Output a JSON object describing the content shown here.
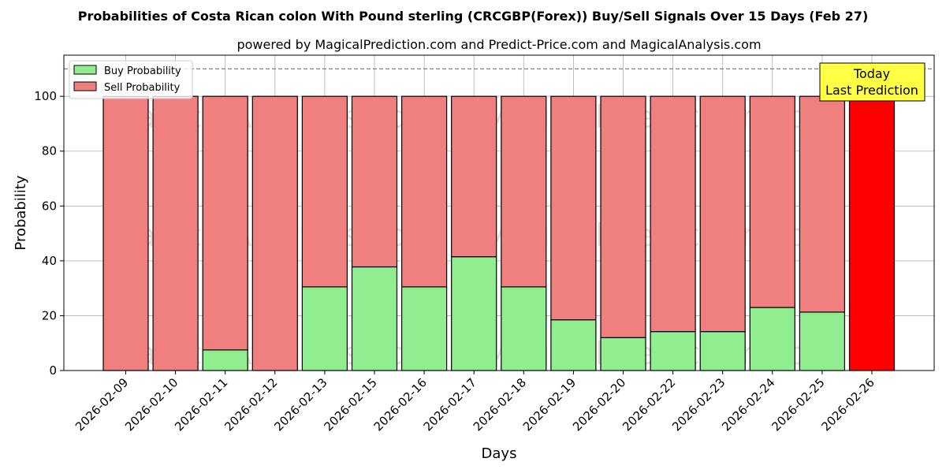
{
  "chart_data": {
    "type": "bar",
    "stacked": true,
    "title": "Probabilities of Costa Rican colon With Pound sterling (CRCGBP(Forex)) Buy/Sell Signals Over 15 Days (Feb 27)",
    "subtitle": "powered by MagicalPrediction.com and Predict-Price.com and MagicalAnalysis.com",
    "xlabel": "Days",
    "ylabel": "Probability",
    "ylim": [
      0,
      115
    ],
    "yticks": [
      0,
      20,
      40,
      60,
      80,
      100
    ],
    "reference_line": 110,
    "grid": true,
    "legend_position": "top-left",
    "categories": [
      "2026-02-09",
      "2026-02-10",
      "2026-02-11",
      "2026-02-12",
      "2026-02-13",
      "2026-02-15",
      "2026-02-16",
      "2026-02-17",
      "2026-02-18",
      "2026-02-19",
      "2026-02-20",
      "2026-02-22",
      "2026-02-23",
      "2026-02-24",
      "2026-02-25",
      "2026-02-26"
    ],
    "series": [
      {
        "name": "Buy Probability",
        "color": "#90ee90",
        "values": [
          0,
          0,
          7.5,
          0,
          30.5,
          37.8,
          30.5,
          41.5,
          30.5,
          18.5,
          12,
          14.2,
          14.2,
          23,
          21.3,
          0
        ]
      },
      {
        "name": "Sell Probability",
        "color": "#f08080",
        "values": [
          100,
          100,
          92.5,
          100,
          69.5,
          62.2,
          69.5,
          58.5,
          69.5,
          81.5,
          88,
          85.8,
          85.8,
          77,
          78.7,
          100
        ]
      }
    ],
    "highlight": {
      "index": 15,
      "color": "#ff0000"
    },
    "annotation": {
      "line1": "Today",
      "line2": "Last Prediction",
      "color": "#ffff44"
    },
    "watermarks": [
      "MagicalAnalysis.com",
      "MagicalPrediction.com"
    ]
  }
}
